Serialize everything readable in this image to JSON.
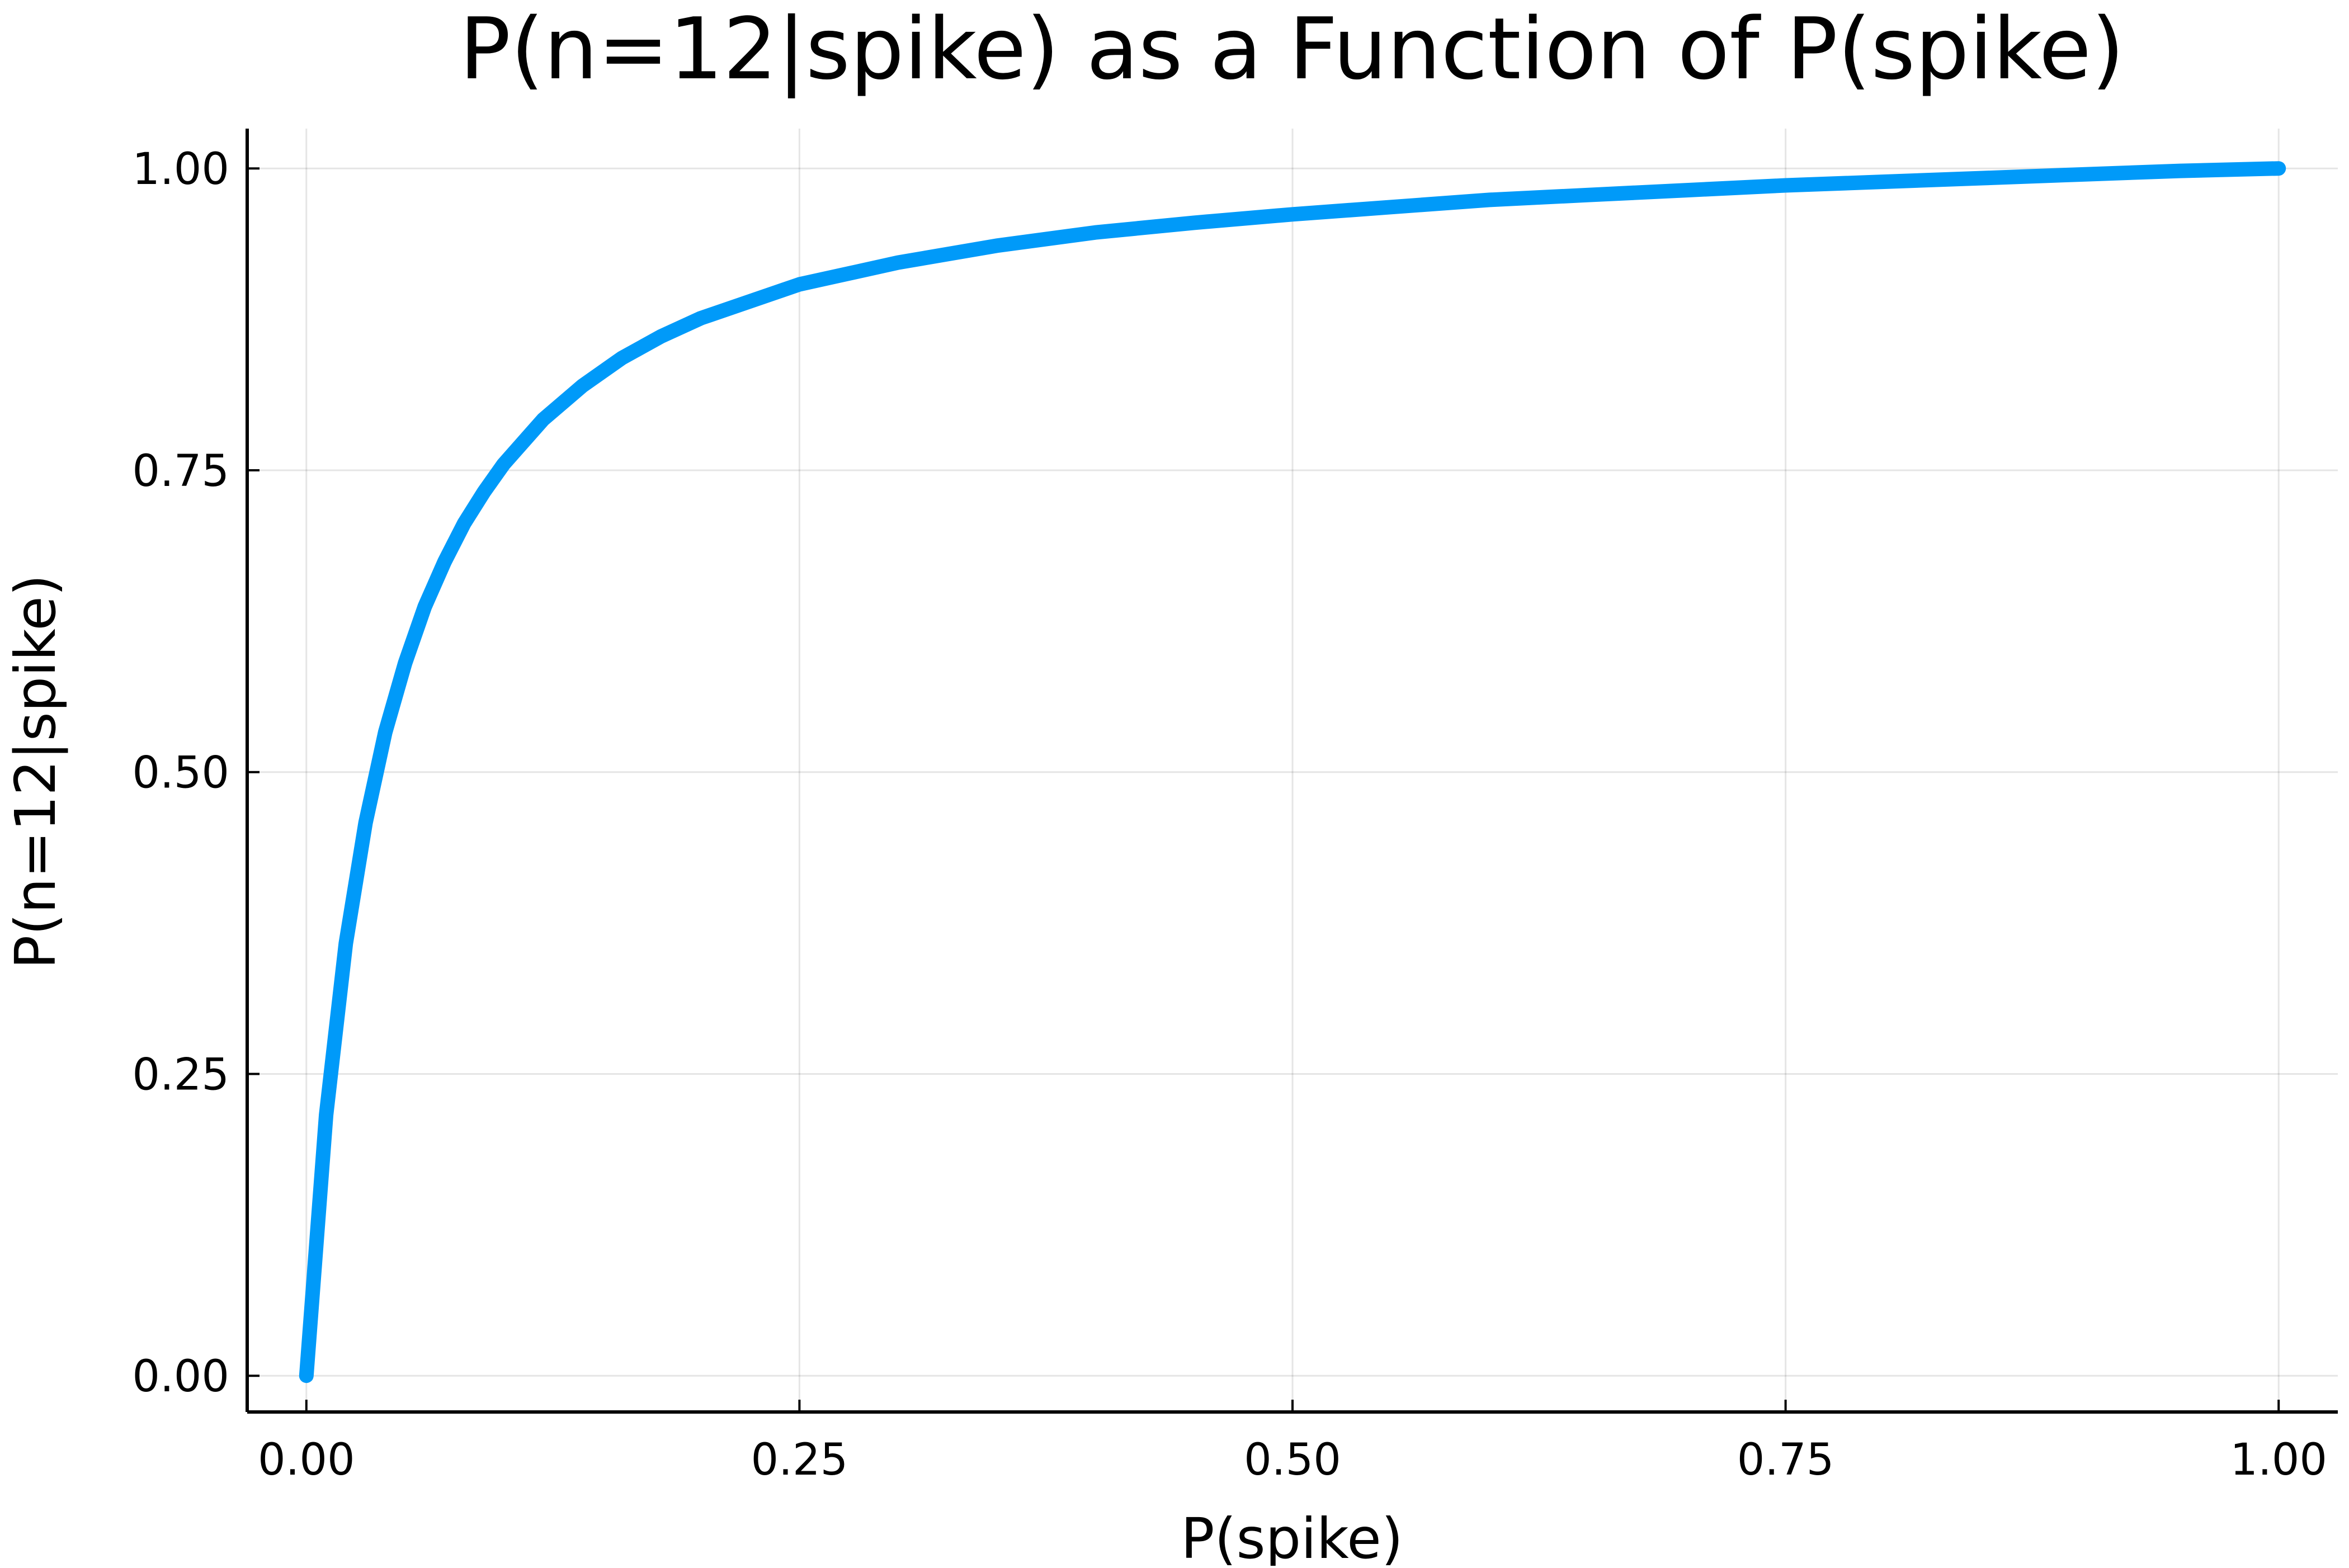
{
  "chart_data": {
    "type": "line",
    "title": "P(n=12|spike) as a Function of P(spike)",
    "xlabel": "P(spike)",
    "ylabel": "P(n=12|spike)",
    "xlim": [
      -0.03,
      1.03
    ],
    "ylim": [
      -0.03,
      1.033
    ],
    "x_ticks": [
      0.0,
      0.25,
      0.5,
      0.75,
      1.0
    ],
    "x_tick_labels": [
      "0.00",
      "0.25",
      "0.50",
      "0.75",
      "1.00"
    ],
    "y_ticks": [
      0.0,
      0.25,
      0.5,
      0.75,
      1.0
    ],
    "y_tick_labels": [
      "0.00",
      "0.25",
      "0.50",
      "0.75",
      "1.00"
    ],
    "grid": true,
    "legend": "none",
    "series": [
      {
        "color": "#009af9",
        "x": [
          0,
          0.01,
          0.02,
          0.03,
          0.04,
          0.05,
          0.06,
          0.07,
          0.08,
          0.09,
          0.1,
          0.12,
          0.14,
          0.16,
          0.18,
          0.2,
          0.25,
          0.3,
          0.35,
          0.4,
          0.45,
          0.5,
          0.55,
          0.6,
          0.65,
          0.7,
          0.75,
          0.8,
          0.85,
          0.9,
          0.95,
          1.0
        ],
        "y": [
          0,
          0.216,
          0.358,
          0.458,
          0.533,
          0.59,
          0.637,
          0.674,
          0.706,
          0.732,
          0.755,
          0.792,
          0.82,
          0.843,
          0.861,
          0.876,
          0.904,
          0.922,
          0.936,
          0.947,
          0.955,
          0.962,
          0.968,
          0.974,
          0.978,
          0.982,
          0.986,
          0.989,
          0.992,
          0.995,
          0.998,
          1.0
        ]
      }
    ]
  }
}
